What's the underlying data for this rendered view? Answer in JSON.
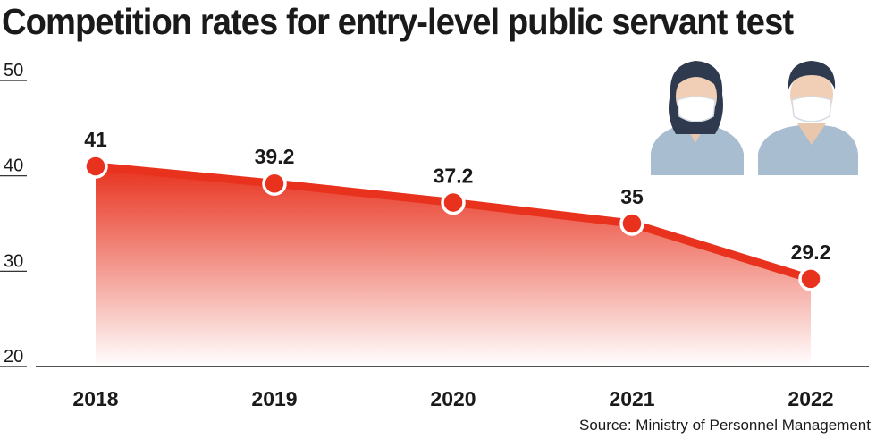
{
  "title": "Competition rates for entry-level public servant test",
  "source": "Source: Ministry of Personnel Management",
  "colors": {
    "line": "#e8321e",
    "area_top": "#e8321e",
    "area_bottom": "#ffffff",
    "point_fill": "#e8321e",
    "point_stroke": "#ffffff"
  },
  "illustration": {
    "icons": [
      "masked-woman-icon",
      "masked-man-icon"
    ]
  },
  "chart_data": {
    "type": "area",
    "categories": [
      "2018",
      "2019",
      "2020",
      "2021",
      "2022"
    ],
    "values": [
      41,
      39.2,
      37.2,
      35,
      29.2
    ],
    "data_labels": [
      "41",
      "39.2",
      "37.2",
      "35",
      "29.2"
    ],
    "yticks": [
      "20",
      "30",
      "40",
      "50"
    ],
    "ylim": [
      20,
      50
    ],
    "grid": false,
    "legend": "none"
  }
}
